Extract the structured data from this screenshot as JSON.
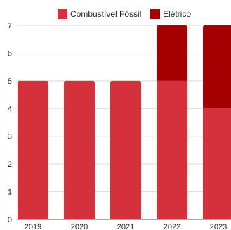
{
  "chart_data": {
    "type": "bar",
    "stacked": true,
    "categories": [
      "2019",
      "2020",
      "2021",
      "2022",
      "2023"
    ],
    "series": [
      {
        "name": "Combustível Fóssil",
        "values": [
          5,
          5,
          5,
          5,
          4
        ],
        "color": "#d5313d"
      },
      {
        "name": "Elétrico",
        "values": [
          0,
          0,
          0,
          2,
          3
        ],
        "color": "#a50000"
      }
    ],
    "y_ticks": [
      "0",
      "1",
      "2",
      "3",
      "4",
      "5",
      "6",
      "7"
    ],
    "ylim": [
      0,
      7
    ],
    "grid": true,
    "legend_position": "top-center"
  }
}
